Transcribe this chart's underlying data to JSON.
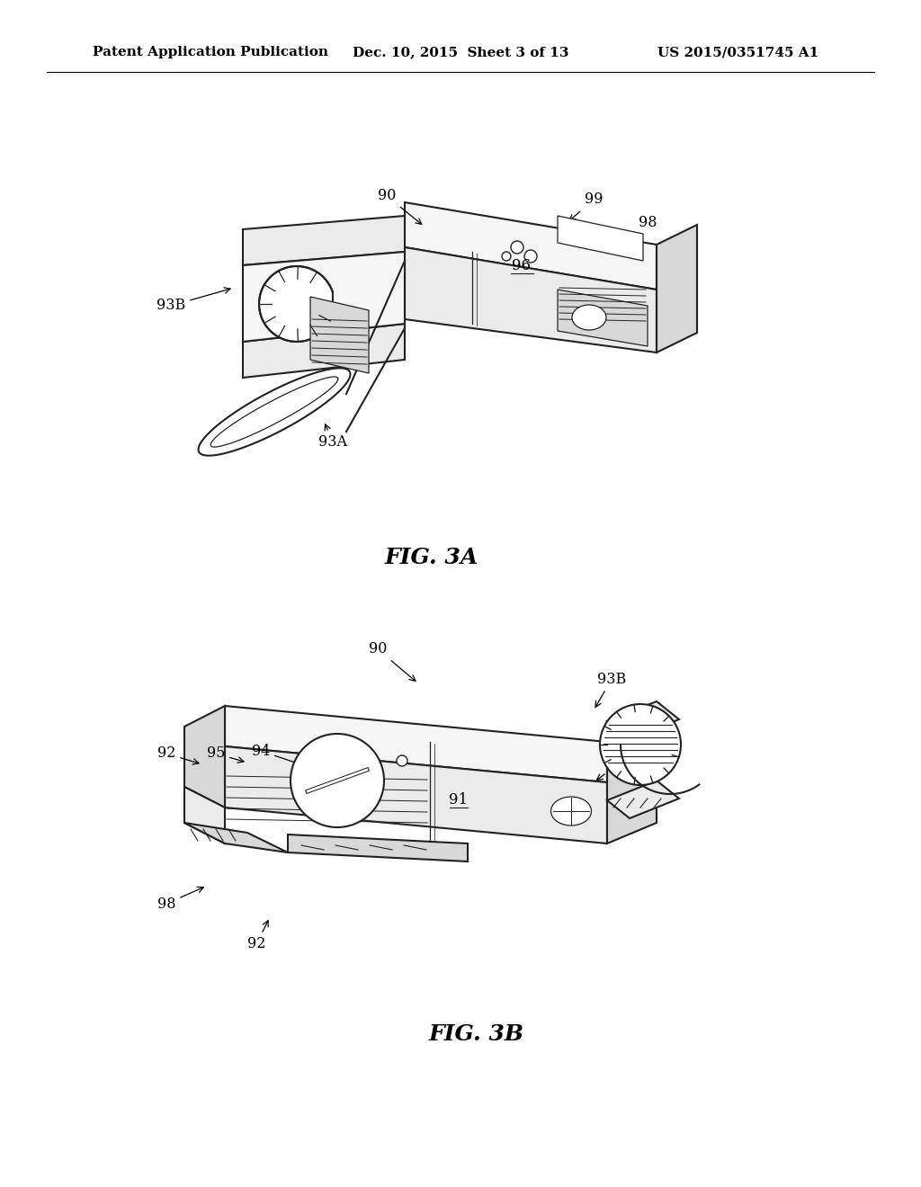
{
  "background_color": "#ffffff",
  "header_left": "Patent Application Publication",
  "header_center": "Dec. 10, 2015  Sheet 3 of 13",
  "header_right": "US 2015/0351745 A1",
  "fig3a_caption": "FIG. 3A",
  "fig3b_caption": "FIG. 3B",
  "caption_fontsize": 18,
  "header_fontsize": 11,
  "label_fontsize": 11.5,
  "lw_main": 1.5,
  "lw_thin": 0.9,
  "device_color": "#ffffff",
  "device_edge": "#222222",
  "device_shade1": "#f5f5f5",
  "device_shade2": "#ebebeb",
  "device_shade3": "#d8d8d8"
}
